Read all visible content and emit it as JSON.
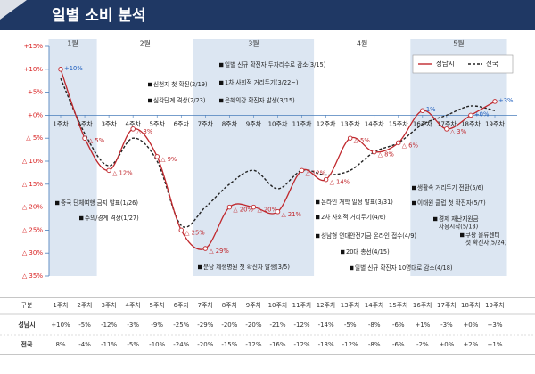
{
  "header": {
    "title": "일별 소비 분석"
  },
  "chart_data": {
    "type": "line",
    "categories": [
      "1주차",
      "2주차",
      "3주차",
      "4주차",
      "5주차",
      "6주차",
      "7주차",
      "8주차",
      "9주차",
      "10주차",
      "11주차",
      "12주차",
      "13주차",
      "14주차",
      "15주차",
      "16주차",
      "17주차",
      "18주차",
      "19주차"
    ],
    "months": [
      "1월",
      "2월",
      "3월",
      "4월",
      "5월"
    ],
    "series": [
      {
        "name": "성남시",
        "color": "#c0282d",
        "values": [
          10,
          -5,
          -12,
          -3,
          -9,
          -25,
          -29,
          -20,
          -20,
          -21,
          -12,
          -14,
          -5,
          -8,
          -6,
          1,
          -3,
          0,
          3
        ],
        "value_labels": [
          "+10%",
          "△ 5%",
          "△ 12%",
          "△ 3%",
          "△ 9%",
          "△ 25%",
          "△ 29%",
          "△ 20%",
          "△ 20%",
          "△ 21%",
          "△ 12%",
          "△ 14%",
          "△ 5%",
          "△ 8%",
          "△ 6%",
          "1%",
          "△ 3%",
          "+0%",
          "+3%"
        ]
      },
      {
        "name": "전국",
        "color": "#222222",
        "dashed": true,
        "values": [
          8,
          -4,
          -11,
          -5,
          -10,
          -24,
          -20,
          -15,
          -12,
          -16,
          -12,
          -13,
          -12,
          -8,
          -6,
          -2,
          0,
          2,
          1
        ]
      }
    ],
    "ylim": [
      -35,
      15
    ],
    "yticks": [
      {
        "value": 15,
        "label": "+15%"
      },
      {
        "value": 10,
        "label": "+10%"
      },
      {
        "value": 5,
        "label": "+5%"
      },
      {
        "value": 0,
        "label": "+0%"
      },
      {
        "value": -5,
        "label": "△ 5%"
      },
      {
        "value": -10,
        "label": "△ 10%"
      },
      {
        "value": -15,
        "label": "△ 15%"
      },
      {
        "value": -20,
        "label": "△ 20%"
      },
      {
        "value": -25,
        "label": "△ 25%"
      },
      {
        "value": -30,
        "label": "△ 30%"
      },
      {
        "value": -35,
        "label": "△ 35%"
      }
    ],
    "legend": "top-right",
    "annotations": [
      [
        "중국 단체여행 금지 발표(1/26)"
      ],
      [
        "주의/경계 격상(1/27)"
      ],
      [
        "신천지 첫 확진(2/19)"
      ],
      [
        "심각단계 격상(2/23)"
      ],
      [
        "일별 신규 확진자 두자리수로 감소(3/15)"
      ],
      [
        "1차 사회적 거리두기(3/22~)"
      ],
      [
        "은혜의강 확진자 발생(3/15)"
      ],
      [
        "분당 제생병원 첫 확진자 발생(3/5)"
      ],
      [
        "온라인 개학 일정 발표(3/31)"
      ],
      [
        "2차 사회적 거리두기(4/6)"
      ],
      [
        "성남형 연대안전기금 온라인 접수(4/9)"
      ],
      [
        "20대 총선(4/15)"
      ],
      [
        "일별 신규 확진자 10명대로 감소(4/18)"
      ],
      [
        "생활속 거리두기 전환(5/6)"
      ],
      [
        "이태원 클럽 첫 확진자(5/7)"
      ],
      [
        "경제 재난지원금",
        "사용시작(5/13)"
      ],
      [
        "쿠팡 물류센터",
        "첫 확진자(5/24)"
      ]
    ]
  },
  "table": {
    "header": [
      "구분",
      "1주차",
      "2주차",
      "3주차",
      "4주차",
      "5주차",
      "6주차",
      "7주차",
      "8주차",
      "9주차",
      "10주차",
      "11주차",
      "12주차",
      "13주차",
      "14주차",
      "15주차",
      "16주차",
      "17주차",
      "18주차",
      "19주차"
    ],
    "rows": [
      [
        "성남시",
        "+10%",
        "-5%",
        "-12%",
        "-3%",
        "-9%",
        "-25%",
        "-29%",
        "-20%",
        "-20%",
        "-21%",
        "-12%",
        "-14%",
        "-5%",
        "-8%",
        "-6%",
        "+1%",
        "-3%",
        "+0%",
        "+3%"
      ],
      [
        "전국",
        "8%",
        "-4%",
        "-11%",
        "-5%",
        "-10%",
        "-24%",
        "-20%",
        "-15%",
        "-12%",
        "-16%",
        "-12%",
        "-13%",
        "-12%",
        "-8%",
        "-6%",
        "-2%",
        "+0%",
        "+2%",
        "+1%"
      ]
    ]
  }
}
